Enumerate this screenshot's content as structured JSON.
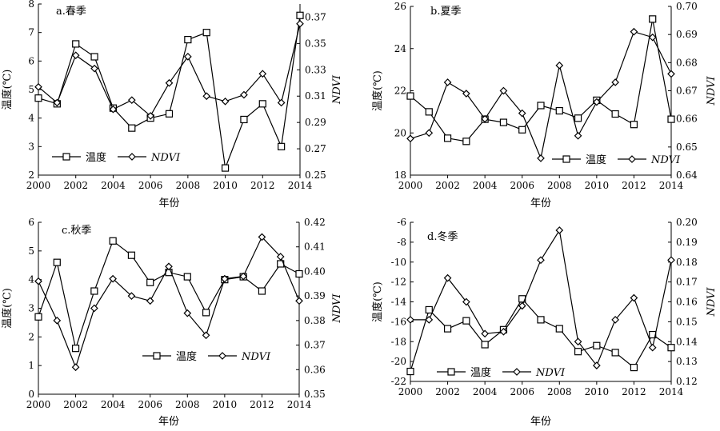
{
  "chart_data": [
    {
      "type": "line",
      "title": "a.春季",
      "xlabel": "年份",
      "ylabel_left": "温度(℃)",
      "ylabel_right": "NDVI",
      "x": [
        2000,
        2001,
        2002,
        2003,
        2004,
        2005,
        2006,
        2007,
        2008,
        2009,
        2010,
        2011,
        2012,
        2013,
        2014
      ],
      "xticks": [
        2000,
        2002,
        2004,
        2006,
        2008,
        2010,
        2012,
        2014
      ],
      "ylim_left": [
        2,
        8
      ],
      "yticks_left": [
        2,
        3,
        4,
        5,
        6,
        7,
        8
      ],
      "ylim_right": [
        0.25,
        0.38
      ],
      "yticks_right": [
        0.25,
        0.27,
        0.29,
        0.31,
        0.33,
        0.35,
        0.37
      ],
      "series": [
        {
          "name": "温度",
          "axis": "left",
          "marker": "square",
          "values": [
            4.7,
            4.5,
            6.6,
            6.15,
            4.35,
            3.65,
            4.0,
            4.15,
            6.75,
            7.0,
            2.25,
            3.95,
            4.5,
            3.0,
            7.6
          ]
        },
        {
          "name": "NDVI",
          "axis": "right",
          "marker": "diamond",
          "values": [
            0.317,
            0.305,
            0.341,
            0.331,
            0.3,
            0.307,
            0.295,
            0.32,
            0.34,
            0.31,
            0.306,
            0.311,
            0.327,
            0.305,
            0.365
          ]
        }
      ],
      "legend_position": "bottom-left"
    },
    {
      "type": "line",
      "title": "b.夏季",
      "xlabel": "年份",
      "ylabel_left": "温度(℃)",
      "ylabel_right": "NDVI",
      "x": [
        2000,
        2001,
        2002,
        2003,
        2004,
        2005,
        2006,
        2007,
        2008,
        2009,
        2010,
        2011,
        2012,
        2013,
        2014
      ],
      "xticks": [
        2000,
        2002,
        2004,
        2006,
        2008,
        2010,
        2012,
        2014
      ],
      "ylim_left": [
        18,
        26
      ],
      "yticks_left": [
        18,
        20,
        22,
        24,
        26
      ],
      "ylim_right": [
        0.64,
        0.7
      ],
      "yticks_right": [
        0.64,
        0.65,
        0.66,
        0.67,
        0.68,
        0.69,
        0.7
      ],
      "series": [
        {
          "name": "温度",
          "axis": "left",
          "marker": "square",
          "values": [
            21.75,
            21.0,
            19.75,
            19.6,
            20.65,
            20.5,
            20.15,
            21.3,
            21.05,
            20.7,
            21.55,
            20.9,
            20.4,
            25.4,
            20.65
          ]
        },
        {
          "name": "NDVI",
          "axis": "right",
          "marker": "diamond",
          "values": [
            0.653,
            0.655,
            0.673,
            0.669,
            0.66,
            0.67,
            0.662,
            0.646,
            0.679,
            0.654,
            0.666,
            0.673,
            0.691,
            0.689,
            0.676
          ]
        }
      ],
      "legend_position": "bottom-right"
    },
    {
      "type": "line",
      "title": "c.秋季",
      "xlabel": "年份",
      "ylabel_left": "温度(℃)",
      "ylabel_right": "NDVI",
      "x": [
        2000,
        2001,
        2002,
        2003,
        2004,
        2005,
        2006,
        2007,
        2008,
        2009,
        2010,
        2011,
        2012,
        2013,
        2014
      ],
      "xticks": [
        2000,
        2002,
        2004,
        2006,
        2008,
        2010,
        2012,
        2014
      ],
      "ylim_left": [
        0,
        6
      ],
      "yticks_left": [
        0,
        1,
        2,
        3,
        4,
        5,
        6
      ],
      "ylim_right": [
        0.35,
        0.42
      ],
      "yticks_right": [
        0.35,
        0.36,
        0.37,
        0.38,
        0.39,
        0.4,
        0.41,
        0.42
      ],
      "series": [
        {
          "name": "温度",
          "axis": "left",
          "marker": "square",
          "values": [
            2.7,
            4.6,
            1.6,
            3.6,
            5.35,
            4.85,
            3.9,
            4.25,
            4.1,
            2.85,
            4.0,
            4.1,
            3.6,
            4.55,
            4.2
          ]
        },
        {
          "name": "NDVI",
          "axis": "right",
          "marker": "diamond",
          "values": [
            0.396,
            0.38,
            0.361,
            0.385,
            0.397,
            0.39,
            0.388,
            0.402,
            0.383,
            0.374,
            0.397,
            0.398,
            0.414,
            0.406,
            0.388
          ]
        }
      ],
      "legend_position": "bottom-center"
    },
    {
      "type": "line",
      "title": "d.冬季",
      "xlabel": "年份",
      "ylabel_left": "温度(℃)",
      "ylabel_right": "NDVI",
      "x": [
        2000,
        2001,
        2002,
        2003,
        2004,
        2005,
        2006,
        2007,
        2008,
        2009,
        2010,
        2011,
        2012,
        2013,
        2014
      ],
      "xticks": [
        2000,
        2002,
        2004,
        2006,
        2008,
        2010,
        2012,
        2014
      ],
      "ylim_left": [
        -22,
        -6
      ],
      "yticks_left": [
        -22,
        -20,
        -18,
        -16,
        -14,
        -12,
        -10,
        -8,
        -6
      ],
      "ylim_right": [
        0.12,
        0.2
      ],
      "yticks_right": [
        0.12,
        0.13,
        0.14,
        0.15,
        0.16,
        0.17,
        0.18,
        0.19,
        0.2
      ],
      "series": [
        {
          "name": "温度",
          "axis": "left",
          "marker": "square",
          "values": [
            -21.0,
            -14.8,
            -16.7,
            -15.9,
            -18.3,
            -16.8,
            -13.7,
            -15.8,
            -16.7,
            -19.0,
            -18.4,
            -19.1,
            -20.6,
            -17.3,
            -18.6
          ]
        },
        {
          "name": "NDVI",
          "axis": "right",
          "marker": "diamond",
          "values": [
            0.151,
            0.151,
            0.172,
            0.16,
            0.144,
            0.145,
            0.158,
            0.181,
            0.196,
            0.14,
            0.128,
            0.151,
            0.162,
            0.137,
            0.181
          ]
        }
      ],
      "legend_position": "bottom-left"
    }
  ]
}
